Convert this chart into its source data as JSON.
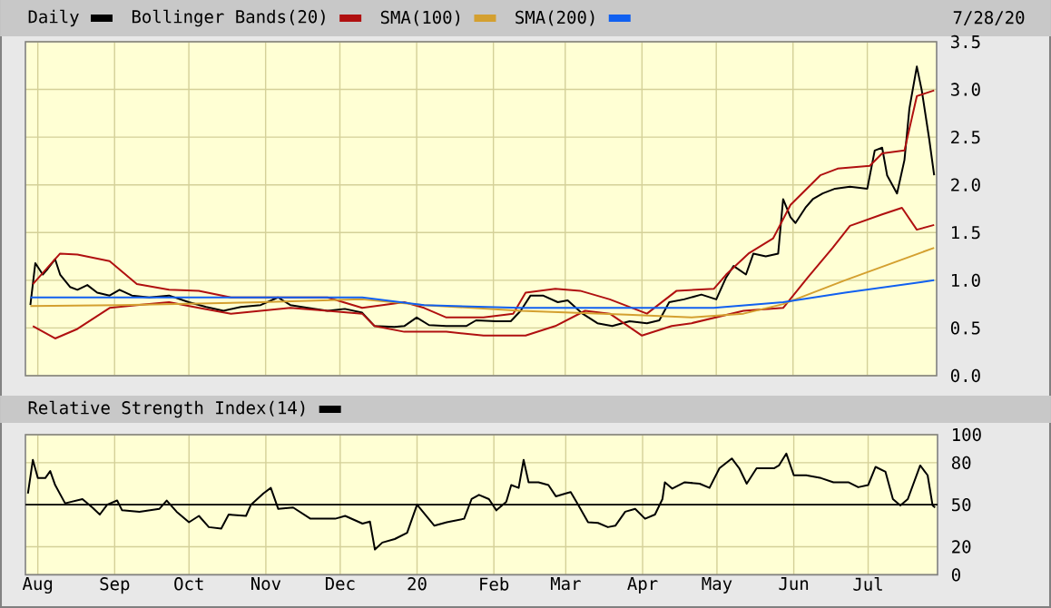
{
  "chart_data": [
    {
      "type": "line",
      "legend": "top left",
      "grid": true,
      "tick_labels": "y",
      "xlim": [
        "2019-07-27",
        "2020-07-29"
      ],
      "ylim": [
        0,
        3.5
      ],
      "xticks": [
        {
          "value": "2019-08-01",
          "label": null
        },
        {
          "value": "2019-09-01",
          "label": null
        },
        {
          "value": "2019-10-01",
          "label": null
        },
        {
          "value": "2019-11-01",
          "label": null
        },
        {
          "value": "2019-12-01",
          "label": null
        },
        {
          "value": "2020-01-01",
          "label": null
        },
        {
          "value": "2020-02-01",
          "label": null
        },
        {
          "value": "2020-03-01",
          "label": null
        },
        {
          "value": "2020-04-01",
          "label": null
        },
        {
          "value": "2020-05-01",
          "label": null
        },
        {
          "value": "2020-06-01",
          "label": null
        },
        {
          "value": "2020-07-01",
          "label": null
        }
      ],
      "yticks": [
        {
          "value": 0,
          "label": "0.0"
        },
        {
          "value": 0.5,
          "label": "0.5"
        },
        {
          "value": 1,
          "label": "1.0"
        },
        {
          "value": 1.5,
          "label": "1.5"
        },
        {
          "value": 2,
          "label": "2.0"
        },
        {
          "value": 2.5,
          "label": "2.5"
        },
        {
          "value": 3,
          "label": "3.0"
        },
        {
          "value": 3.5,
          "label": "3.5"
        }
      ],
      "annotations": [
        "7/28/20"
      ],
      "series": [
        {
          "name": "Daily",
          "color": "#000000",
          "x": [
            "2019-07-29",
            "2019-07-31",
            "2019-08-03",
            "2019-08-05",
            "2019-08-08",
            "2019-08-10",
            "2019-08-14",
            "2019-08-17",
            "2019-08-21",
            "2019-08-25",
            "2019-08-30",
            "2019-09-03",
            "2019-09-08",
            "2019-09-15",
            "2019-09-23",
            "2019-10-01",
            "2019-10-08",
            "2019-10-15",
            "2019-10-22",
            "2019-10-30",
            "2019-11-06",
            "2019-11-11",
            "2019-11-18",
            "2019-11-26",
            "2019-12-03",
            "2019-12-10",
            "2019-12-15",
            "2019-12-23",
            "2019-12-27",
            "2020-01-01",
            "2020-01-06",
            "2020-01-13",
            "2020-01-21",
            "2020-01-25",
            "2020-02-02",
            "2020-02-08",
            "2020-02-12",
            "2020-02-16",
            "2020-02-21",
            "2020-02-27",
            "2020-03-02",
            "2020-03-08",
            "2020-03-14",
            "2020-03-20",
            "2020-03-27",
            "2020-04-03",
            "2020-04-08",
            "2020-04-12",
            "2020-04-18",
            "2020-04-25",
            "2020-05-01",
            "2020-05-05",
            "2020-05-08",
            "2020-05-13",
            "2020-05-16",
            "2020-05-21",
            "2020-05-26",
            "2020-05-28",
            "2020-05-31",
            "2020-06-02",
            "2020-06-06",
            "2020-06-09",
            "2020-06-13",
            "2020-06-18",
            "2020-06-24",
            "2020-07-01",
            "2020-07-04",
            "2020-07-07",
            "2020-07-09",
            "2020-07-13",
            "2020-07-16",
            "2020-07-18",
            "2020-07-21",
            "2020-07-23",
            "2020-07-26",
            "2020-07-28"
          ],
          "values": [
            0.74,
            1.18,
            1.06,
            1.12,
            1.22,
            1.06,
            0.93,
            0.9,
            0.95,
            0.87,
            0.84,
            0.9,
            0.84,
            0.82,
            0.84,
            0.77,
            0.72,
            0.68,
            0.72,
            0.74,
            0.82,
            0.74,
            0.71,
            0.68,
            0.7,
            0.66,
            0.52,
            0.51,
            0.52,
            0.61,
            0.53,
            0.52,
            0.52,
            0.58,
            0.57,
            0.57,
            0.68,
            0.84,
            0.84,
            0.77,
            0.79,
            0.65,
            0.55,
            0.52,
            0.57,
            0.55,
            0.58,
            0.77,
            0.8,
            0.85,
            0.8,
            1.03,
            1.15,
            1.06,
            1.28,
            1.25,
            1.28,
            1.85,
            1.66,
            1.6,
            1.76,
            1.85,
            1.91,
            1.96,
            1.98,
            1.96,
            2.36,
            2.39,
            2.1,
            1.91,
            2.26,
            2.8,
            3.24,
            2.99,
            2.48,
            2.1
          ]
        },
        {
          "name": "Bollinger Bands(20)",
          "color": "#b01010",
          "x": [
            "2019-07-30",
            "2019-08-10",
            "2019-08-17",
            "2019-08-30",
            "2019-09-10",
            "2019-09-23",
            "2019-10-05",
            "2019-10-18",
            "2019-10-30",
            "2019-11-11",
            "2019-11-26",
            "2019-12-10",
            "2019-12-27",
            "2020-01-04",
            "2020-01-13",
            "2020-01-28",
            "2020-02-09",
            "2020-02-14",
            "2020-02-26",
            "2020-03-07",
            "2020-03-19",
            "2020-04-03",
            "2020-04-15",
            "2020-04-30",
            "2020-05-05",
            "2020-05-14",
            "2020-05-24",
            "2020-05-31",
            "2020-06-12",
            "2020-06-19",
            "2020-07-02",
            "2020-07-07",
            "2020-07-16",
            "2020-07-21",
            "2020-07-28"
          ],
          "values": [
            0.96,
            1.28,
            1.27,
            1.2,
            0.96,
            0.9,
            0.89,
            0.82,
            0.82,
            0.82,
            0.82,
            0.71,
            0.77,
            0.71,
            0.61,
            0.61,
            0.65,
            0.87,
            0.91,
            0.89,
            0.8,
            0.65,
            0.89,
            0.91,
            1.06,
            1.28,
            1.44,
            1.79,
            2.1,
            2.17,
            2.2,
            2.33,
            2.36,
            2.93,
            2.99
          ]
        },
        {
          "color": "#b01010",
          "x": [
            "2019-07-30",
            "2019-08-08",
            "2019-08-17",
            "2019-08-30",
            "2019-09-10",
            "2019-09-23",
            "2019-10-05",
            "2019-10-18",
            "2019-10-30",
            "2019-11-11",
            "2019-11-26",
            "2019-12-10",
            "2019-12-15",
            "2019-12-27",
            "2020-01-13",
            "2020-01-28",
            "2020-02-14",
            "2020-02-26",
            "2020-03-09",
            "2020-03-19",
            "2020-04-01",
            "2020-04-13",
            "2020-04-21",
            "2020-05-12",
            "2020-05-28",
            "2020-06-07",
            "2020-06-17",
            "2020-06-24",
            "2020-07-07",
            "2020-07-15",
            "2020-07-21",
            "2020-07-28"
          ],
          "values": [
            0.52,
            0.39,
            0.49,
            0.71,
            0.74,
            0.77,
            0.71,
            0.65,
            0.68,
            0.71,
            0.68,
            0.65,
            0.52,
            0.46,
            0.46,
            0.42,
            0.42,
            0.52,
            0.68,
            0.65,
            0.42,
            0.52,
            0.55,
            0.68,
            0.71,
            1.03,
            1.34,
            1.57,
            1.69,
            1.76,
            1.53,
            1.58
          ]
        },
        {
          "name": "SMA(100)",
          "color": "#d4a030",
          "x": [
            "2019-07-29",
            "2019-09-03",
            "2019-10-30",
            "2019-12-10",
            "2020-01-04",
            "2020-02-12",
            "2020-03-26",
            "2020-04-21",
            "2020-05-12",
            "2020-05-28",
            "2020-06-22",
            "2020-07-28"
          ],
          "values": [
            0.73,
            0.74,
            0.77,
            0.8,
            0.74,
            0.68,
            0.64,
            0.61,
            0.65,
            0.75,
            1.0,
            1.34
          ]
        },
        {
          "name": "SMA(200)",
          "color": "#1060f0",
          "x": [
            "2019-07-29",
            "2019-12-10",
            "2020-01-04",
            "2020-02-12",
            "2020-04-30",
            "2020-05-28",
            "2020-06-22",
            "2020-07-28"
          ],
          "values": [
            0.82,
            0.82,
            0.74,
            0.71,
            0.71,
            0.77,
            0.87,
            1.0
          ]
        }
      ]
    },
    {
      "type": "line",
      "legend": "top left",
      "grid": true,
      "xlim": [
        "2019-07-27",
        "2020-07-29"
      ],
      "ylim": [
        0,
        100
      ],
      "xticks": [
        {
          "value": "2019-08-01",
          "label": "Aug"
        },
        {
          "value": "2019-09-01",
          "label": "Sep"
        },
        {
          "value": "2019-10-01",
          "label": "Oct"
        },
        {
          "value": "2019-11-01",
          "label": "Nov"
        },
        {
          "value": "2019-12-01",
          "label": "Dec"
        },
        {
          "value": "2020-01-01",
          "label": "20"
        },
        {
          "value": "2020-02-01",
          "label": "Feb"
        },
        {
          "value": "2020-03-01",
          "label": "Mar"
        },
        {
          "value": "2020-04-01",
          "label": "Apr"
        },
        {
          "value": "2020-05-01",
          "label": "May"
        },
        {
          "value": "2020-06-01",
          "label": "Jun"
        },
        {
          "value": "2020-07-01",
          "label": "Jul"
        }
      ],
      "yticks": [
        0,
        20,
        50,
        80,
        100
      ],
      "ref_lines": [
        {
          "axis": "y",
          "value": 50,
          "color": "#000000"
        }
      ],
      "series": [
        {
          "name": "Relative Strength Index(14)",
          "color": "#000000",
          "x": [
            "2019-07-28",
            "2019-07-30",
            "2019-08-01",
            "2019-08-04",
            "2019-08-06",
            "2019-08-08",
            "2019-08-12",
            "2019-08-19",
            "2019-08-23",
            "2019-08-26",
            "2019-08-29",
            "2019-09-02",
            "2019-09-04",
            "2019-09-11",
            "2019-09-19",
            "2019-09-22",
            "2019-09-26",
            "2019-10-01",
            "2019-10-05",
            "2019-10-09",
            "2019-10-14",
            "2019-10-17",
            "2019-10-24",
            "2019-10-26",
            "2019-10-31",
            "2019-11-03",
            "2019-11-06",
            "2019-11-12",
            "2019-11-19",
            "2019-11-29",
            "2019-12-03",
            "2019-12-10",
            "2019-12-13",
            "2019-12-15",
            "2019-12-18",
            "2019-12-23",
            "2019-12-28",
            "2020-01-01",
            "2020-01-08",
            "2020-01-13",
            "2020-01-20",
            "2020-01-23",
            "2020-01-26",
            "2020-01-30",
            "2020-02-02",
            "2020-02-06",
            "2020-02-08",
            "2020-02-11",
            "2020-02-13",
            "2020-02-15",
            "2020-02-19",
            "2020-02-23",
            "2020-02-26",
            "2020-03-01",
            "2020-03-03",
            "2020-03-06",
            "2020-03-10",
            "2020-03-14",
            "2020-03-18",
            "2020-03-21",
            "2020-03-25",
            "2020-03-29",
            "2020-04-02",
            "2020-04-06",
            "2020-04-09",
            "2020-04-10",
            "2020-04-13",
            "2020-04-18",
            "2020-04-24",
            "2020-04-28",
            "2020-05-02",
            "2020-05-07",
            "2020-05-10",
            "2020-05-13",
            "2020-05-17",
            "2020-05-24",
            "2020-05-26",
            "2020-05-29",
            "2020-06-01",
            "2020-06-06",
            "2020-06-12",
            "2020-06-17",
            "2020-06-23",
            "2020-06-27",
            "2020-07-01",
            "2020-07-04",
            "2020-07-08",
            "2020-07-11",
            "2020-07-14",
            "2020-07-17",
            "2020-07-22",
            "2020-07-25",
            "2020-07-27",
            "2020-07-28"
          ],
          "values": [
            58,
            82,
            69,
            69,
            74,
            64,
            51,
            54,
            48,
            43,
            50,
            53,
            46,
            45,
            47,
            53,
            45,
            37.5,
            42,
            34,
            33,
            43,
            42,
            50,
            58,
            62,
            47,
            48,
            40,
            40,
            42,
            36.5,
            38,
            18,
            23,
            25.5,
            30,
            50,
            35,
            37.5,
            40,
            54,
            57,
            54,
            46,
            52,
            64,
            62,
            82,
            66,
            66,
            64,
            56,
            58,
            59,
            50,
            37.5,
            37,
            34,
            35,
            45,
            47,
            40,
            43,
            54,
            66,
            61.5,
            66,
            65,
            62,
            76,
            83,
            76,
            65,
            76,
            76,
            78,
            86.5,
            71,
            71,
            69,
            66,
            66,
            62.5,
            64,
            77,
            73.5,
            54,
            49.5,
            54,
            78,
            71,
            49.5,
            48
          ]
        }
      ]
    }
  ]
}
